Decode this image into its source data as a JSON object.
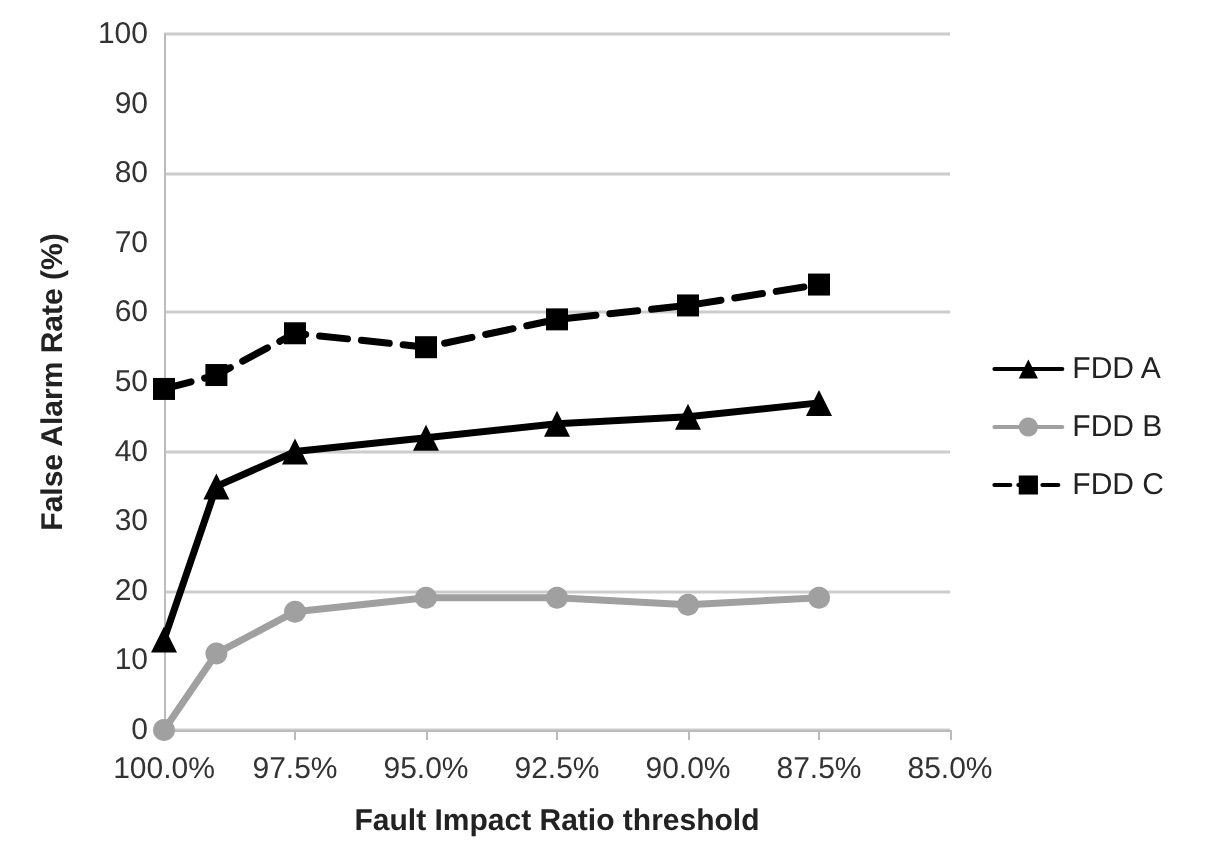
{
  "chart_data": {
    "type": "line",
    "xlabel": "Fault Impact Ratio threshold",
    "ylabel": "False Alarm Rate (%)",
    "xlim": [
      100,
      85
    ],
    "xticks": [
      {
        "value": 100,
        "label": "100.0%"
      },
      {
        "value": 97.5,
        "label": "97.5%"
      },
      {
        "value": 95,
        "label": "95.0%"
      },
      {
        "value": 92.5,
        "label": "92.5%"
      },
      {
        "value": 90,
        "label": "90.0%"
      },
      {
        "value": 87.5,
        "label": "87.5%"
      },
      {
        "value": 85,
        "label": "85.0%"
      }
    ],
    "ylim": [
      0,
      100
    ],
    "yticks": [
      0,
      10,
      20,
      30,
      40,
      50,
      60,
      70,
      80,
      90,
      100
    ],
    "grid": "y",
    "legend": "right",
    "x": [
      100,
      99,
      97.5,
      95,
      92.5,
      90,
      87.5
    ],
    "series": [
      {
        "name": "FDD A",
        "color": "#000000",
        "marker": "triangle",
        "line_style": "solid",
        "values": [
          13,
          35,
          40,
          42,
          44,
          45,
          47
        ]
      },
      {
        "name": "FDD B",
        "color": "#a0a0a0",
        "marker": "circle",
        "line_style": "solid",
        "values": [
          0,
          11,
          17,
          19,
          19,
          18,
          19
        ]
      },
      {
        "name": "FDD C",
        "color": "#000000",
        "marker": "square",
        "line_style": "dashed",
        "values": [
          49,
          51,
          57,
          55,
          59,
          61,
          64
        ]
      }
    ]
  }
}
